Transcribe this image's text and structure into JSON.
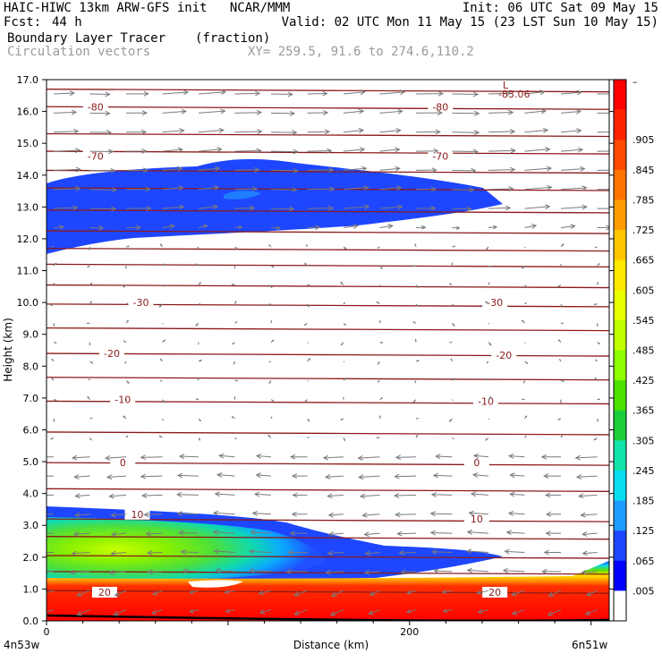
{
  "header": {
    "line1_left": "HAIC-HIWC 13km ARW-GFS init   NCAR/MMM",
    "line1_right": "Init: 06 UTC Sat 09 May 15",
    "fcst_label": "Fcst:",
    "fcst_value": "44 h",
    "valid": "Valid: 02 UTC Mon 11 May 15 (23 LST Sun 10 May 15)",
    "field_name": "Boundary Layer Tracer",
    "field_units": "(fraction)",
    "overlay_name": "Circulation vectors",
    "xy_range": "XY= 259.5, 91.6 to 274.6,110.2"
  },
  "colors": {
    "temperature_contour": "#8b1a1a",
    "vector": "#7f7f7f",
    "frame": "#000000"
  },
  "chart_data": {
    "type": "cross-section",
    "xlabel": "Distance (km)",
    "ylabel": "Height (km)",
    "xlim": [
      0,
      310
    ],
    "ylim": [
      0,
      17
    ],
    "x_ticks": [
      0,
      200
    ],
    "y_ticks": [
      "0.0",
      "1.0",
      "2.0",
      "3.0",
      "4.0",
      "5.0",
      "6.0",
      "7.0",
      "8.0",
      "9.0",
      "10.0",
      "11.0",
      "12.0",
      "13.0",
      "14.0",
      "15.0",
      "16.0",
      "17.0"
    ],
    "left_endpoint": "4n53w",
    "right_endpoint": "6n51w",
    "temperature_labels": [
      {
        "text": "-80",
        "x": 27,
        "y": 16.15
      },
      {
        "text": "-80",
        "x": 217,
        "y": 16.15
      },
      {
        "text": "-70",
        "x": 27,
        "y": 14.6
      },
      {
        "text": "-70",
        "x": 217,
        "y": 14.6
      },
      {
        "text": "-30",
        "x": 52,
        "y": 10.0
      },
      {
        "text": "-30",
        "x": 247,
        "y": 10.0
      },
      {
        "text": "-20",
        "x": 36,
        "y": 8.4
      },
      {
        "text": "-20",
        "x": 252,
        "y": 8.35
      },
      {
        "text": "-10",
        "x": 42,
        "y": 6.95
      },
      {
        "text": "-10",
        "x": 242,
        "y": 6.9
      },
      {
        "text": "0",
        "x": 42,
        "y": 4.97
      },
      {
        "text": "0",
        "x": 237,
        "y": 4.97
      },
      {
        "text": "10",
        "x": 50,
        "y": 3.35
      },
      {
        "text": "10",
        "x": 237,
        "y": 3.2
      },
      {
        "text": "20",
        "x": 32,
        "y": 0.9
      },
      {
        "text": "20",
        "x": 247,
        "y": 0.9
      }
    ],
    "min_label": {
      "letter": "L",
      "value": "-83.06",
      "x": 255,
      "y": 16.7
    },
    "colorbar": {
      "top_label": "–",
      "labels": [
        ".905",
        ".845",
        ".785",
        ".725",
        ".665",
        ".605",
        ".545",
        ".485",
        ".425",
        ".365",
        ".305",
        ".245",
        ".185",
        ".125",
        ".065",
        ".005"
      ],
      "colors": [
        "#ff0000",
        "#ff2400",
        "#ff4a00",
        "#ff7400",
        "#ff9d00",
        "#ffc600",
        "#ffe800",
        "#eaff00",
        "#c0ff00",
        "#8cff00",
        "#4ce200",
        "#1ccf3a",
        "#10e4a8",
        "#0adcf0",
        "#1e9cff",
        "#1e46ff",
        "#0000ff",
        "#ffffff"
      ]
    },
    "series": [
      {
        "name": "Boundary Layer Tracer",
        "description_values": "fraction 0.005–>0.905; upper plume 12.5–14.4 km at 0–0.045, low-level layer 0–3.6 km up to ~0.3, surface layer >0.9"
      },
      {
        "name": "Circulation vectors",
        "description_values": "westerly (rightward) flow 12–16.5 km, weak/variable 5–11 km, easterly (leftward) flow 0.3–5 km"
      }
    ]
  }
}
